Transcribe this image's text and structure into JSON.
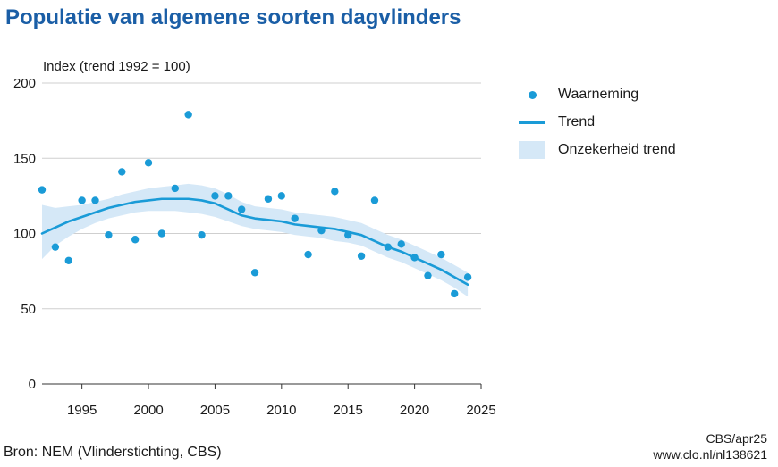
{
  "title": "Populatie van algemene soorten dagvlinders",
  "footer": {
    "source": "Bron: NEM (Vlinderstichting, CBS)",
    "credit": "CBS/apr25",
    "url": "www.clo.nl/nl138621"
  },
  "legend": {
    "observation": "Waarneming",
    "trend": "Trend",
    "uncertainty": "Onzekerheid trend"
  },
  "colors": {
    "title": "#1a5ea6",
    "series": "#1a9bd7",
    "band": "#d5e8f7",
    "grid": "#cfcfcf"
  },
  "chart_data": {
    "type": "scatter",
    "ylabel": "Index (trend 1992 = 100)",
    "xlim": [
      1992,
      2025
    ],
    "ylim": [
      0,
      200
    ],
    "x_ticks": [
      1995,
      2000,
      2005,
      2010,
      2015,
      2020,
      2025
    ],
    "y_ticks": [
      0,
      50,
      100,
      150,
      200
    ],
    "grid": "horizontal",
    "legend_position": "right",
    "series": [
      {
        "name": "Waarneming",
        "type": "scatter",
        "x": [
          1992,
          1993,
          1994,
          1995,
          1996,
          1997,
          1998,
          1999,
          2000,
          2001,
          2002,
          2003,
          2004,
          2005,
          2006,
          2007,
          2008,
          2009,
          2010,
          2011,
          2012,
          2013,
          2014,
          2015,
          2016,
          2017,
          2018,
          2019,
          2020,
          2021,
          2022,
          2023,
          2024
        ],
        "y": [
          129,
          91,
          82,
          122,
          122,
          99,
          141,
          96,
          147,
          100,
          130,
          179,
          99,
          125,
          125,
          116,
          74,
          123,
          125,
          110,
          86,
          102,
          128,
          99,
          85,
          122,
          91,
          93,
          84,
          72,
          86,
          60,
          71
        ]
      },
      {
        "name": "Trend",
        "type": "line",
        "x": [
          1992,
          1993,
          1994,
          1995,
          1996,
          1997,
          1998,
          1999,
          2000,
          2001,
          2002,
          2003,
          2004,
          2005,
          2006,
          2007,
          2008,
          2009,
          2010,
          2011,
          2012,
          2013,
          2014,
          2015,
          2016,
          2017,
          2018,
          2019,
          2020,
          2021,
          2022,
          2023,
          2024
        ],
        "y": [
          100,
          104,
          108,
          111,
          114,
          117,
          119,
          121,
          122,
          123,
          123,
          123,
          122,
          120,
          116,
          112,
          110,
          109,
          108,
          106,
          105,
          104,
          103,
          101,
          99,
          95,
          91,
          88,
          84,
          80,
          76,
          71,
          66
        ]
      },
      {
        "name": "Onzekerheid trend",
        "type": "band",
        "x": [
          1992,
          1993,
          1994,
          1995,
          1996,
          1997,
          1998,
          1999,
          2000,
          2001,
          2002,
          2003,
          2004,
          2005,
          2006,
          2007,
          2008,
          2009,
          2010,
          2011,
          2012,
          2013,
          2014,
          2015,
          2016,
          2017,
          2018,
          2019,
          2020,
          2021,
          2022,
          2023,
          2024
        ],
        "lower": [
          83,
          92,
          98,
          103,
          107,
          110,
          112,
          114,
          115,
          115,
          115,
          114,
          113,
          111,
          108,
          105,
          103,
          102,
          101,
          99,
          98,
          97,
          95,
          94,
          92,
          88,
          84,
          81,
          77,
          73,
          69,
          64,
          58
        ],
        "upper": [
          119,
          117,
          118,
          119,
          121,
          123,
          126,
          128,
          130,
          131,
          132,
          133,
          132,
          130,
          126,
          121,
          118,
          117,
          116,
          114,
          113,
          112,
          111,
          109,
          107,
          103,
          99,
          96,
          92,
          88,
          84,
          79,
          74
        ]
      }
    ]
  }
}
